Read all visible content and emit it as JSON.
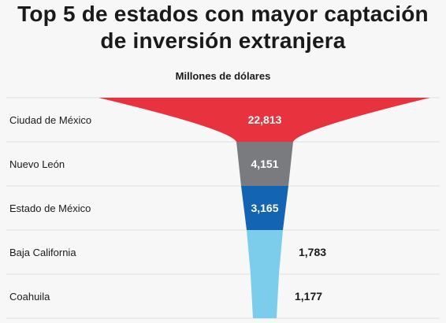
{
  "title": {
    "line1": "Top 5 de estados con mayor captación",
    "line2": "de inversión extranjera"
  },
  "subtitle": "Millones de dólares",
  "chart_data": {
    "type": "funnel",
    "title": "Top 5 de estados con mayor captación de inversión extranjera",
    "unit": "Millones de dólares",
    "categories": [
      "Ciudad de México",
      "Nuevo León",
      "Estado de México",
      "Baja California",
      "Coahuila"
    ],
    "values": [
      22813,
      4151,
      3165,
      1783,
      1177
    ],
    "value_labels": [
      "22,813",
      "4,151",
      "3,165",
      "1,783",
      "1,177"
    ],
    "colors": [
      "#e8323e",
      "#7a7b7e",
      "#1464b4",
      "#7cccec",
      "#7cccec"
    ]
  }
}
